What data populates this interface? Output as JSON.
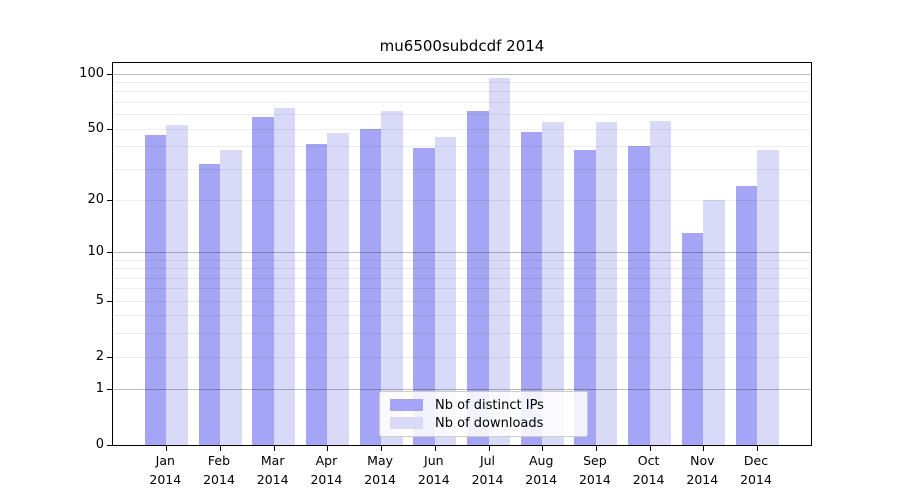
{
  "title": "mu6500subdcdf 2014",
  "colors": {
    "distinct_ips": "#a5a5f5",
    "downloads": "#d9d9f8",
    "grid_minor": "#ededed",
    "grid_major": "#b5b5b5",
    "spine": "#000000",
    "legend_border": "#cccccc"
  },
  "legend": {
    "items": [
      {
        "label": "Nb of distinct IPs",
        "color_key": "distinct_ips"
      },
      {
        "label": "Nb of downloads",
        "color_key": "downloads"
      }
    ]
  },
  "y_axis": {
    "tick_labels": [
      "100",
      "50",
      "20",
      "10",
      "5",
      "2",
      "1",
      "0"
    ],
    "tick_values": [
      100,
      50,
      20,
      10,
      5,
      2,
      1,
      0
    ]
  },
  "x_axis": {
    "month_labels": [
      "Jan",
      "Feb",
      "Mar",
      "Apr",
      "May",
      "Jun",
      "Jul",
      "Aug",
      "Sep",
      "Oct",
      "Nov",
      "Dec"
    ],
    "year_label": "2014"
  },
  "chart_data": {
    "type": "bar",
    "title": "mu6500subdcdf 2014",
    "categories": [
      "Jan 2014",
      "Feb 2014",
      "Mar 2014",
      "Apr 2014",
      "May 2014",
      "Jun 2014",
      "Jul 2014",
      "Aug 2014",
      "Sep 2014",
      "Oct 2014",
      "Nov 2014",
      "Dec 2014"
    ],
    "series": [
      {
        "name": "Nb of distinct IPs",
        "values": [
          46,
          32,
          58,
          41,
          50,
          39,
          62,
          48,
          38,
          40,
          13,
          24
        ]
      },
      {
        "name": "Nb of downloads",
        "values": [
          52,
          38,
          65,
          47,
          62,
          45,
          94,
          54,
          54,
          55,
          20,
          38
        ]
      }
    ],
    "yscale": "log1p",
    "ylim": [
      0,
      114
    ],
    "y_ticks": [
      0,
      1,
      2,
      5,
      10,
      20,
      50,
      100
    ],
    "grid_minor_values": [
      2,
      3,
      4,
      5,
      6,
      7,
      8,
      9,
      20,
      30,
      40,
      50,
      60,
      70,
      80,
      90
    ],
    "grid_major_values": [
      1,
      10,
      100
    ],
    "grid": true,
    "legend_position": "lower center"
  }
}
